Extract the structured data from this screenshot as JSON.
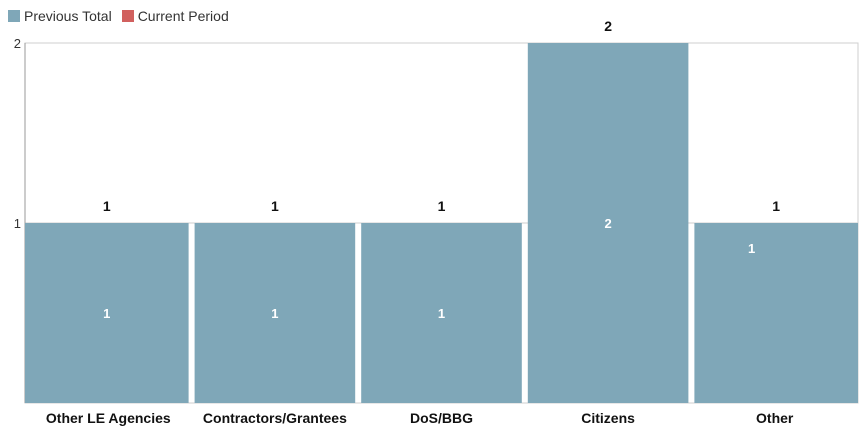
{
  "legend": [
    {
      "label": "Previous Total",
      "color": "#7fa7b8"
    },
    {
      "label": "Current Period",
      "color": "#d1605e"
    }
  ],
  "chart_data": {
    "type": "bar",
    "stacked": true,
    "categories": [
      "Other LE Agencies",
      "Contractors/Grantees",
      "DoS/BBG",
      "Citizens",
      "Other"
    ],
    "series": [
      {
        "name": "Previous Total",
        "color": "#7fa7b8",
        "values": [
          1,
          1,
          1,
          2,
          1
        ]
      },
      {
        "name": "Current Period",
        "color": "#d1605e",
        "values": [
          0,
          0,
          0,
          0,
          0
        ]
      }
    ],
    "totals": [
      1,
      1,
      1,
      2,
      1
    ],
    "y_ticks": [
      1,
      2
    ],
    "ylim": [
      0,
      2
    ],
    "grid": true,
    "legend_position": "top-left"
  }
}
